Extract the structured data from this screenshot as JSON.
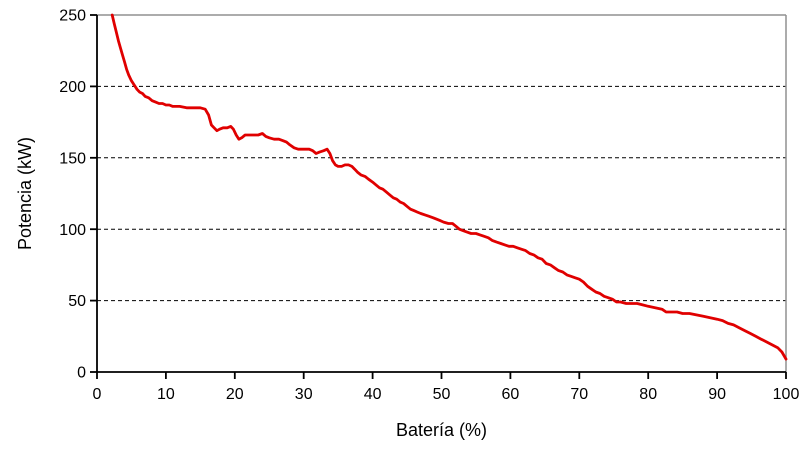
{
  "chart_data": {
    "type": "line",
    "title": "",
    "xlabel": "Batería (%)",
    "ylabel": "Potencia (kW)",
    "xlim": [
      0,
      100
    ],
    "ylim": [
      0,
      250
    ],
    "xticks": [
      0,
      10,
      20,
      30,
      40,
      50,
      60,
      70,
      80,
      90,
      100
    ],
    "yticks": [
      0,
      50,
      100,
      150,
      200,
      250
    ],
    "gridlines_y": [
      50,
      100,
      150,
      200
    ],
    "grid_style": "dashed",
    "legend_position": "none",
    "line_color": "#E00000",
    "axis_color": "#000000",
    "plot_border_color": "#909090",
    "background_color": "#FFFFFF",
    "series": [
      {
        "name": "Potencia",
        "points": [
          [
            2.2,
            250
          ],
          [
            2.5,
            244
          ],
          [
            2.8,
            238
          ],
          [
            3.1,
            232
          ],
          [
            3.4,
            227
          ],
          [
            3.7,
            222
          ],
          [
            4,
            217
          ],
          [
            4.3,
            212
          ],
          [
            4.6,
            208
          ],
          [
            5,
            204
          ],
          [
            5.4,
            201
          ],
          [
            5.8,
            198
          ],
          [
            6.2,
            196
          ],
          [
            6.6,
            195
          ],
          [
            7,
            193
          ],
          [
            7.5,
            192
          ],
          [
            8,
            190
          ],
          [
            8.5,
            189
          ],
          [
            9,
            188
          ],
          [
            9.5,
            188
          ],
          [
            10,
            187
          ],
          [
            10.5,
            187
          ],
          [
            11,
            186
          ],
          [
            12,
            186
          ],
          [
            13,
            185
          ],
          [
            14,
            185
          ],
          [
            15,
            185
          ],
          [
            15.7,
            184
          ],
          [
            16.2,
            180
          ],
          [
            16.6,
            173
          ],
          [
            17,
            171
          ],
          [
            17.4,
            169
          ],
          [
            17.8,
            170
          ],
          [
            18.3,
            171
          ],
          [
            18.9,
            171
          ],
          [
            19.4,
            172
          ],
          [
            19.8,
            170
          ],
          [
            20.2,
            166
          ],
          [
            20.6,
            163
          ],
          [
            21,
            164
          ],
          [
            21.5,
            166
          ],
          [
            22,
            166
          ],
          [
            22.7,
            166
          ],
          [
            23.4,
            166
          ],
          [
            24,
            167
          ],
          [
            24.5,
            165
          ],
          [
            25,
            164
          ],
          [
            25.7,
            163
          ],
          [
            26.4,
            163
          ],
          [
            27,
            162
          ],
          [
            27.5,
            161
          ],
          [
            28,
            159
          ],
          [
            28.6,
            157
          ],
          [
            29.2,
            156
          ],
          [
            30,
            156
          ],
          [
            30.8,
            156
          ],
          [
            31.3,
            155
          ],
          [
            31.8,
            153
          ],
          [
            32.3,
            154
          ],
          [
            32.9,
            155
          ],
          [
            33.4,
            156
          ],
          [
            33.8,
            153
          ],
          [
            34.2,
            148
          ],
          [
            34.6,
            145
          ],
          [
            35,
            144
          ],
          [
            35.5,
            144
          ],
          [
            36,
            145
          ],
          [
            36.5,
            145
          ],
          [
            37,
            144
          ],
          [
            37.4,
            142
          ],
          [
            37.8,
            140
          ],
          [
            38.3,
            138
          ],
          [
            38.9,
            137
          ],
          [
            39.4,
            135
          ],
          [
            40,
            133
          ],
          [
            40.5,
            131
          ],
          [
            41,
            129
          ],
          [
            41.5,
            128
          ],
          [
            42,
            126
          ],
          [
            42.5,
            124
          ],
          [
            43,
            122
          ],
          [
            43.5,
            121
          ],
          [
            44,
            119
          ],
          [
            44.5,
            118
          ],
          [
            45,
            116
          ],
          [
            45.5,
            114
          ],
          [
            46,
            113
          ],
          [
            46.5,
            112
          ],
          [
            47,
            111
          ],
          [
            47.6,
            110
          ],
          [
            48.2,
            109
          ],
          [
            48.8,
            108
          ],
          [
            49.3,
            107
          ],
          [
            49.8,
            106
          ],
          [
            50.3,
            105
          ],
          [
            51,
            104
          ],
          [
            51.6,
            104
          ],
          [
            52.1,
            102
          ],
          [
            52.6,
            100
          ],
          [
            53.1,
            99
          ],
          [
            53.7,
            98
          ],
          [
            54.3,
            97
          ],
          [
            55,
            97
          ],
          [
            55.6,
            96
          ],
          [
            56.2,
            95
          ],
          [
            56.8,
            94
          ],
          [
            57.4,
            92
          ],
          [
            58,
            91
          ],
          [
            58.6,
            90
          ],
          [
            59.2,
            89
          ],
          [
            59.8,
            88
          ],
          [
            60.4,
            88
          ],
          [
            61,
            87
          ],
          [
            61.6,
            86
          ],
          [
            62.2,
            85
          ],
          [
            62.8,
            83
          ],
          [
            63.4,
            82
          ],
          [
            64,
            80
          ],
          [
            64.6,
            79
          ],
          [
            65.2,
            76
          ],
          [
            65.8,
            75
          ],
          [
            66.4,
            73
          ],
          [
            67,
            71
          ],
          [
            67.6,
            70
          ],
          [
            68.2,
            68
          ],
          [
            68.8,
            67
          ],
          [
            69.4,
            66
          ],
          [
            70,
            65
          ],
          [
            70.6,
            63
          ],
          [
            71.2,
            60
          ],
          [
            71.8,
            58
          ],
          [
            72.4,
            56
          ],
          [
            73,
            55
          ],
          [
            73.6,
            53
          ],
          [
            74.2,
            52
          ],
          [
            74.8,
            51
          ],
          [
            75.4,
            49
          ],
          [
            76,
            49
          ],
          [
            76.8,
            48
          ],
          [
            77.6,
            48
          ],
          [
            78.4,
            48
          ],
          [
            79.2,
            47
          ],
          [
            80,
            46
          ],
          [
            81,
            45
          ],
          [
            82,
            44
          ],
          [
            82.6,
            42
          ],
          [
            83.4,
            42
          ],
          [
            84.2,
            42
          ],
          [
            85,
            41
          ],
          [
            86,
            41
          ],
          [
            87,
            40
          ],
          [
            88,
            39
          ],
          [
            89,
            38
          ],
          [
            90,
            37
          ],
          [
            90.8,
            36
          ],
          [
            91.6,
            34
          ],
          [
            92.4,
            33
          ],
          [
            93.2,
            31
          ],
          [
            94,
            29
          ],
          [
            94.8,
            27
          ],
          [
            95.6,
            25
          ],
          [
            96.4,
            23
          ],
          [
            97.2,
            21
          ],
          [
            98,
            19
          ],
          [
            98.8,
            17
          ],
          [
            99.4,
            14
          ],
          [
            100,
            9
          ]
        ]
      }
    ]
  }
}
